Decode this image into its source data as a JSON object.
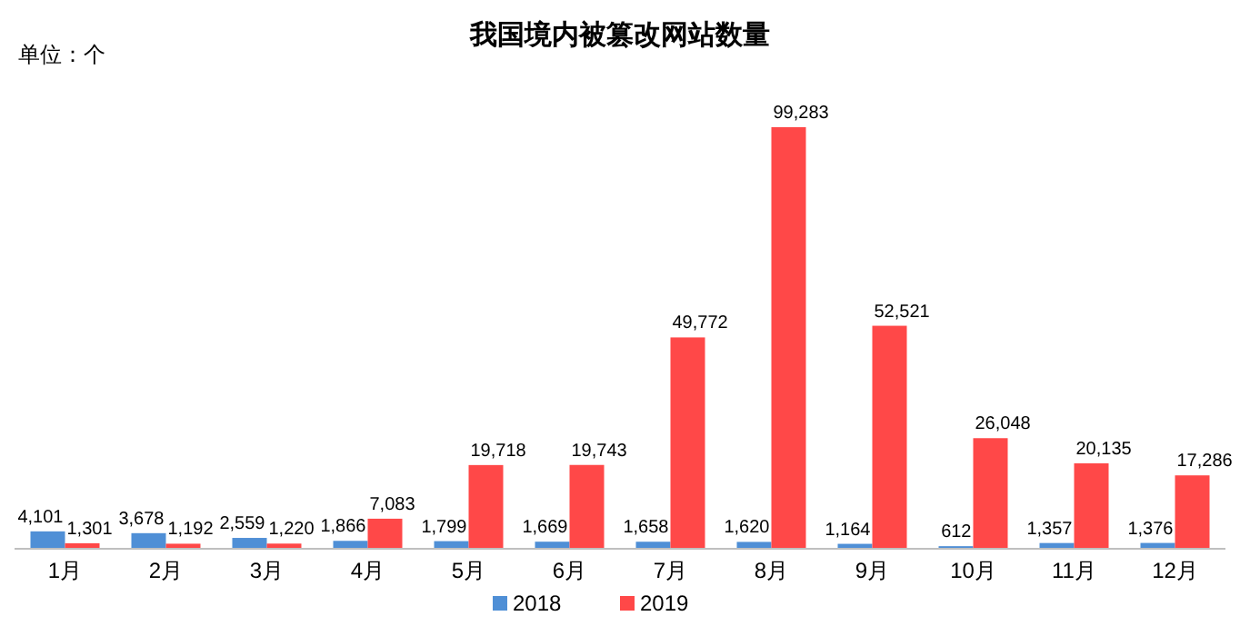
{
  "chart_data": {
    "type": "bar",
    "title": "我国境内被篡改网站数量",
    "annotations": [
      "单位：个"
    ],
    "categories": [
      "1月",
      "2月",
      "3月",
      "4月",
      "5月",
      "6月",
      "7月",
      "8月",
      "9月",
      "10月",
      "11月",
      "12月"
    ],
    "series": [
      {
        "name": "2018",
        "color": "#4f8fd6",
        "values": [
          4101,
          3678,
          2559,
          1866,
          1799,
          1669,
          1658,
          1620,
          1164,
          612,
          1357,
          1376
        ],
        "value_labels": [
          "4,101",
          "3,678",
          "2,559",
          "1,866",
          "1,799",
          "1,669",
          "1,658",
          "1,620",
          "1,164",
          "612",
          "1,357",
          "1,376"
        ]
      },
      {
        "name": "2019",
        "color": "#ff4848",
        "values": [
          1301,
          1192,
          1220,
          7083,
          19718,
          19743,
          49772,
          99283,
          52521,
          26048,
          20135,
          17286
        ],
        "value_labels": [
          "1,301",
          "1,192",
          "1,220",
          "7,083",
          "19,718",
          "19,743",
          "49,772",
          "99,283",
          "52,521",
          "26,048",
          "20,135",
          "17,286"
        ]
      }
    ],
    "legend": "bottom"
  }
}
